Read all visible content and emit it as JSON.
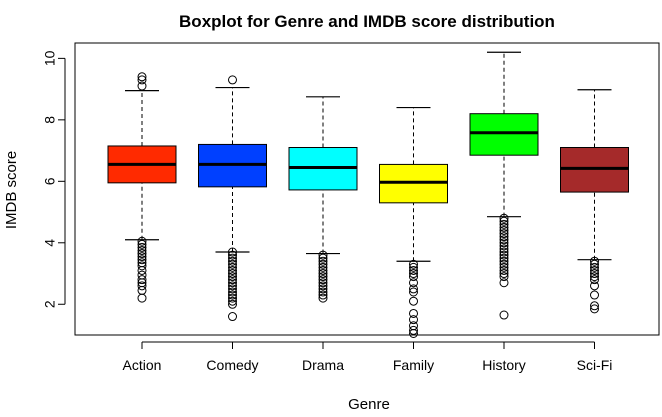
{
  "chart_data": {
    "type": "boxplot",
    "title": "Boxplot for Genre and IMDB score distribution",
    "xlabel": "Genre",
    "ylabel": "IMDB score",
    "ylim": [
      1.0,
      10.5
    ],
    "yticks": [
      2,
      4,
      6,
      8,
      10
    ],
    "grid": false,
    "categories": [
      "Action",
      "Comedy",
      "Drama",
      "Family",
      "History",
      "Sci-Fi"
    ],
    "boxes": [
      {
        "name": "Action",
        "color": "#ff2a00",
        "whisker_low": 4.1,
        "q1": 5.95,
        "median": 6.55,
        "q3": 7.15,
        "whisker_high": 8.95,
        "outliers": [
          9.4,
          9.3,
          9.1,
          4.05,
          3.95,
          3.85,
          3.75,
          3.65,
          3.55,
          3.45,
          3.35,
          3.25,
          3.1,
          2.95,
          2.8,
          2.7,
          2.6,
          2.45,
          2.2
        ]
      },
      {
        "name": "Comedy",
        "color": "#0040ff",
        "whisker_low": 3.7,
        "q1": 5.82,
        "median": 6.55,
        "q3": 7.2,
        "whisker_high": 9.05,
        "outliers": [
          9.3,
          3.7,
          3.6,
          3.5,
          3.4,
          3.3,
          3.2,
          3.1,
          3.0,
          2.9,
          2.8,
          2.7,
          2.6,
          2.5,
          2.4,
          2.3,
          2.2,
          2.1,
          2.0,
          1.6
        ]
      },
      {
        "name": "Drama",
        "color": "#00ffff",
        "whisker_low": 3.65,
        "q1": 5.72,
        "median": 6.45,
        "q3": 7.1,
        "whisker_high": 8.75,
        "outliers": [
          3.6,
          3.5,
          3.4,
          3.3,
          3.2,
          3.1,
          3.0,
          2.9,
          2.8,
          2.7,
          2.6,
          2.5,
          2.4,
          2.3,
          2.2
        ]
      },
      {
        "name": "Family",
        "color": "#ffff00",
        "whisker_low": 3.4,
        "q1": 5.3,
        "median": 5.97,
        "q3": 6.55,
        "whisker_high": 8.4,
        "outliers": [
          3.3,
          3.2,
          3.1,
          3.0,
          2.9,
          2.7,
          2.5,
          2.4,
          2.1,
          1.7,
          1.5,
          1.3,
          1.15,
          1.05
        ]
      },
      {
        "name": "History",
        "color": "#00ff00",
        "whisker_low": 4.85,
        "q1": 6.85,
        "median": 7.58,
        "q3": 8.2,
        "whisker_high": 10.2,
        "outliers": [
          4.8,
          4.7,
          4.6,
          4.5,
          4.4,
          4.3,
          4.2,
          4.1,
          4.0,
          3.9,
          3.8,
          3.7,
          3.6,
          3.5,
          3.4,
          3.3,
          3.2,
          3.1,
          3.0,
          2.9,
          2.7,
          1.65
        ]
      },
      {
        "name": "Sci-Fi",
        "color": "#a52a2a",
        "whisker_low": 3.45,
        "q1": 5.65,
        "median": 6.42,
        "q3": 7.1,
        "whisker_high": 8.98,
        "outliers": [
          3.4,
          3.3,
          3.2,
          3.1,
          3.0,
          2.9,
          2.8,
          2.6,
          2.3,
          1.95,
          1.85
        ]
      }
    ]
  }
}
